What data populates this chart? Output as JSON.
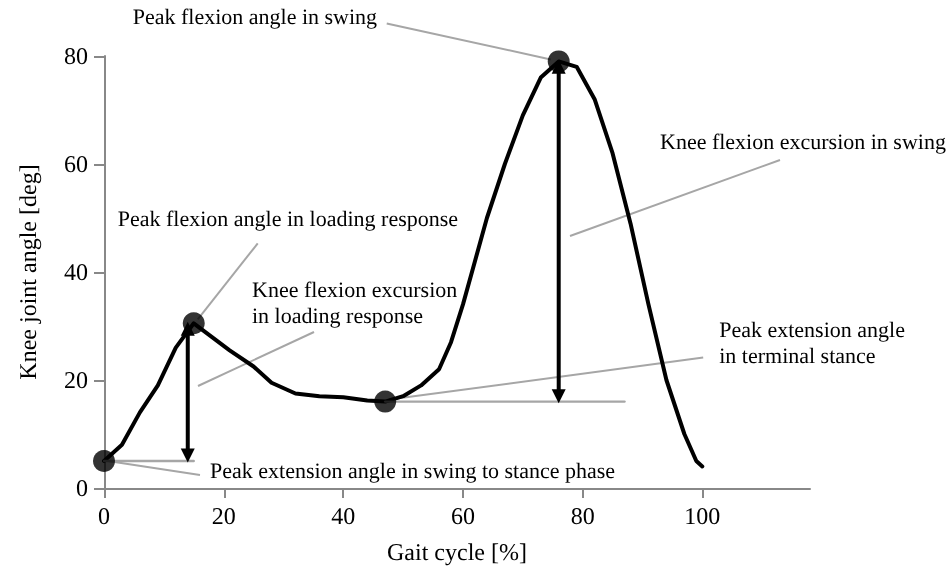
{
  "chart_data": {
    "type": "line",
    "xlabel": "Gait cycle [%]",
    "ylabel": "Knee joint angle [deg]",
    "xlim": [
      0,
      118
    ],
    "xticks": [
      0,
      20,
      40,
      60,
      80,
      100
    ],
    "ylim": [
      0,
      80
    ],
    "yticks": [
      0,
      20,
      40,
      60,
      80
    ],
    "grid": false,
    "series": [
      {
        "color": "#000000",
        "marker": "none",
        "x": [
          0,
          3,
          6,
          9,
          12,
          15,
          18,
          21,
          25,
          28,
          32,
          36,
          40,
          44,
          47,
          50,
          53,
          56,
          58,
          60,
          62,
          64,
          67,
          70,
          73,
          76,
          79,
          82,
          85,
          88,
          91,
          94,
          97,
          99,
          100
        ],
        "values": [
          5,
          8,
          14,
          19,
          26,
          30.5,
          28,
          25.5,
          22.5,
          19.5,
          17.5,
          17,
          16.8,
          16.2,
          16,
          17,
          19,
          22,
          27,
          34,
          42,
          50,
          60,
          69,
          76,
          79,
          78,
          72,
          62,
          49,
          34,
          20,
          10,
          5,
          4
        ]
      },
      {
        "type": "line",
        "color": "#a6a6a6",
        "marker": "none",
        "x": [
          0,
          15
        ],
        "values": [
          5,
          5
        ]
      },
      {
        "type": "line",
        "color": "#a6a6a6",
        "marker": "none",
        "x": [
          47,
          87
        ],
        "values": [
          16,
          16
        ]
      },
      {
        "type": "line",
        "color": "#000000",
        "marker": "triangle",
        "x": [
          14,
          14
        ],
        "values": [
          6,
          29.5
        ]
      },
      {
        "type": "line",
        "color": "#000000",
        "marker": "triangle",
        "x": [
          76,
          76
        ],
        "values": [
          17,
          78
        ]
      },
      {
        "type": "scatter",
        "color": "#000000",
        "marker": "circle",
        "x": [
          0,
          15,
          47,
          76
        ],
        "values": [
          5,
          30.5,
          16,
          79
        ]
      }
    ],
    "annotations": [
      {
        "text": "Peak flexion angle in swing",
        "x": 76,
        "y": 79
      },
      {
        "text": "Peak flexion angle in loading response",
        "x": 15,
        "y": 30.5
      },
      "Knee flexion excursion\nin loading response",
      "Knee flexion excursion in swing",
      {
        "text": "Peak extension angle\nin terminal stance",
        "x": 47,
        "y": 16
      },
      {
        "text": "Peak extension angle in swing to stance phase",
        "x": 0,
        "y": 5
      }
    ]
  }
}
